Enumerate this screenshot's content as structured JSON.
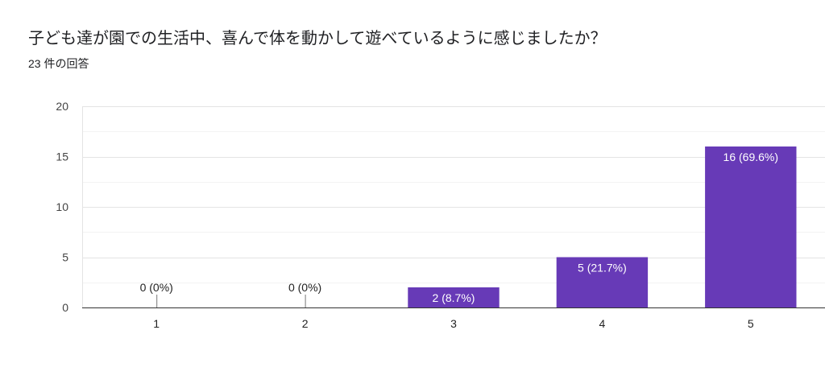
{
  "chart_data": {
    "type": "bar",
    "title": "子ども達が園での生活中、喜んで体を動かして遊べているように感じましたか？",
    "subtitle": "23 件の回答",
    "categories": [
      "1",
      "2",
      "3",
      "4",
      "5"
    ],
    "values": [
      0,
      0,
      2,
      5,
      16
    ],
    "data_labels": [
      "0 (0%)",
      "0 (0%)",
      "2 (8.7%)",
      "5 (21.7%)",
      "16 (69.6%)"
    ],
    "xlabel": "",
    "ylabel": "",
    "ylim": [
      0,
      20
    ],
    "yticks": [
      0,
      5,
      10,
      15,
      20
    ],
    "grid": true,
    "minor_grid": true,
    "legend": "none",
    "bar_color": "#673ab7"
  }
}
